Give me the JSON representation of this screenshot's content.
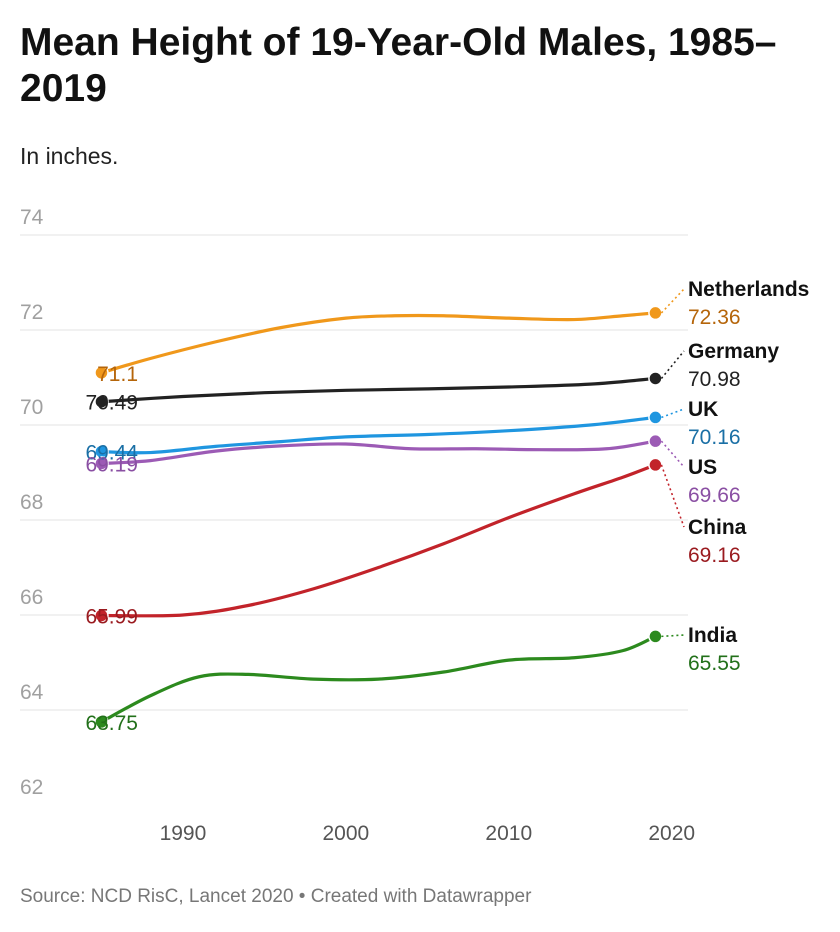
{
  "header": {
    "title": "Mean Height of 19-Year-Old Males, 1985–2019",
    "subtitle": "In inches."
  },
  "footer": {
    "source": "Source: NCD RisC, Lancet 2020 • Created with Datawrapper"
  },
  "chart_data": {
    "type": "line",
    "title": "Mean Height of 19-Year-Old Males, 1985–2019",
    "subtitle": "In inches.",
    "xlim": [
      1980,
      2021
    ],
    "ylim": [
      62,
      74
    ],
    "x_ticks": [
      1990,
      2000,
      2010,
      2020
    ],
    "y_ticks": [
      62,
      64,
      66,
      68,
      70,
      72,
      74
    ],
    "grid": true,
    "legend": "direct labels at line ends",
    "series": [
      {
        "name": "Netherlands",
        "color": "#f0981b",
        "label_color": "#b5650a",
        "x": [
          1985,
          1988,
          1992,
          1996,
          2000,
          2003,
          2006,
          2010,
          2014,
          2017,
          2019
        ],
        "y": [
          71.1,
          71.4,
          71.75,
          72.05,
          72.25,
          72.3,
          72.3,
          72.25,
          72.22,
          72.3,
          72.36
        ],
        "start_label": "71.1",
        "end_label": "72.36"
      },
      {
        "name": "Germany",
        "color": "#222222",
        "label_color": "#222222",
        "x": [
          1985,
          1990,
          1995,
          2000,
          2005,
          2010,
          2015,
          2019
        ],
        "y": [
          70.49,
          70.6,
          70.68,
          70.73,
          70.76,
          70.8,
          70.86,
          70.98
        ],
        "start_label": "70.49",
        "end_label": "70.98"
      },
      {
        "name": "UK",
        "color": "#1f96e0",
        "label_color": "#1a6fa5",
        "x": [
          1985,
          1988,
          1992,
          1996,
          2000,
          2005,
          2010,
          2015,
          2019
        ],
        "y": [
          69.44,
          69.42,
          69.55,
          69.65,
          69.75,
          69.8,
          69.88,
          70.0,
          70.16
        ],
        "start_label": "69.44",
        "end_label": "70.16"
      },
      {
        "name": "US",
        "color": "#9c5bb5",
        "label_color": "#8a4fa3",
        "x": [
          1985,
          1988,
          1992,
          1996,
          2000,
          2004,
          2008,
          2012,
          2016,
          2019
        ],
        "y": [
          69.19,
          69.25,
          69.45,
          69.56,
          69.6,
          69.5,
          69.5,
          69.48,
          69.5,
          69.66
        ],
        "start_label": "69.19",
        "end_label": "69.66"
      },
      {
        "name": "China",
        "color": "#c2232a",
        "label_color": "#9a1a1f",
        "x": [
          1985,
          1990,
          1994,
          1998,
          2002,
          2006,
          2010,
          2014,
          2017,
          2019
        ],
        "y": [
          65.99,
          66.0,
          66.2,
          66.55,
          67.0,
          67.5,
          68.05,
          68.55,
          68.9,
          69.16
        ],
        "start_label": "65.99",
        "end_label": "69.16"
      },
      {
        "name": "India",
        "color": "#2c8a1e",
        "label_color": "#22701a",
        "x": [
          1985,
          1988,
          1991,
          1994,
          1998,
          2002,
          2006,
          2010,
          2014,
          2017,
          2019
        ],
        "y": [
          63.75,
          64.3,
          64.7,
          64.75,
          64.65,
          64.65,
          64.8,
          65.05,
          65.1,
          65.25,
          65.55
        ],
        "start_label": "63.75",
        "end_label": "65.55"
      }
    ]
  }
}
